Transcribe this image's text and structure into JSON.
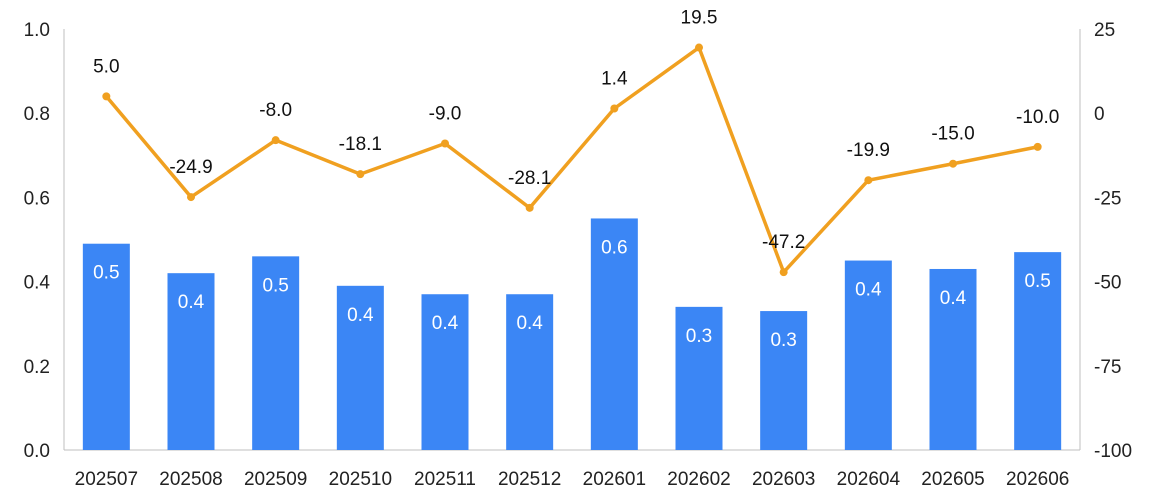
{
  "chart_data": {
    "type": "bar",
    "categories": [
      "202507",
      "202508",
      "202509",
      "202510",
      "202511",
      "202512",
      "202601",
      "202602",
      "202603",
      "202604",
      "202605",
      "202606"
    ],
    "series": [
      {
        "type": "bar",
        "axis": "left",
        "color": "#3B86F5",
        "values": [
          0.5,
          0.4,
          0.5,
          0.4,
          0.4,
          0.4,
          0.6,
          0.3,
          0.3,
          0.4,
          0.4,
          0.5
        ],
        "heights": [
          0.49,
          0.42,
          0.46,
          0.39,
          0.37,
          0.37,
          0.55,
          0.34,
          0.33,
          0.45,
          0.43,
          0.47
        ]
      },
      {
        "type": "line",
        "axis": "right",
        "color": "#F0A020",
        "values": [
          5.0,
          -24.9,
          -8.0,
          -18.1,
          -9.0,
          -28.1,
          1.4,
          19.5,
          -47.2,
          -19.9,
          -15.0,
          -10.0
        ]
      }
    ],
    "left_axis": {
      "ylim": [
        0,
        1.0
      ],
      "ticks": [
        "0.0",
        "0.2",
        "0.4",
        "0.6",
        "0.8",
        "1.0"
      ]
    },
    "right_axis": {
      "ylim": [
        -100,
        25
      ],
      "ticks": [
        "-100",
        "-75",
        "-50",
        "-25",
        "0",
        "25"
      ]
    },
    "grid": false,
    "legend": "none"
  }
}
